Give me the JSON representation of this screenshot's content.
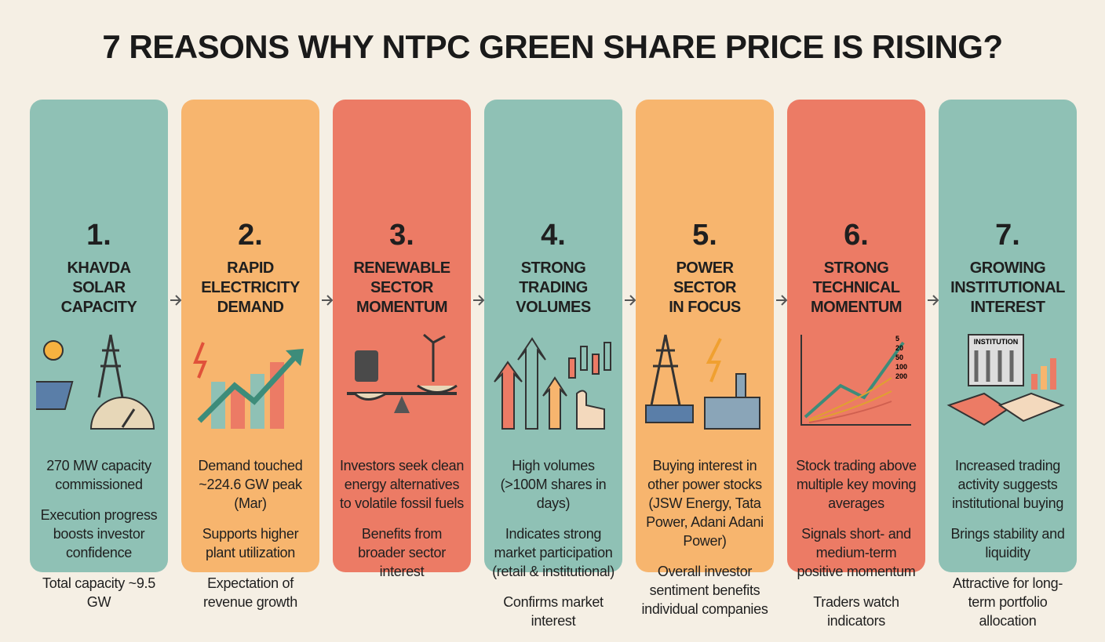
{
  "title": "7 REASONS WHY NTPC GREEN SHARE PRICE IS RISING?",
  "cards": [
    {
      "number": "1.",
      "heading": [
        "KHAVDA",
        "SOLAR",
        "CAPACITY"
      ],
      "body": [
        "270 MW capacity commissioned",
        "Execution progress boosts investor confidence",
        "Total capacity ~9.5 GW"
      ]
    },
    {
      "number": "2.",
      "heading": [
        "RAPID",
        "ELECTRICITY",
        "DEMAND"
      ],
      "body": [
        "Demand touched ~224.6 GW peak (Mar)",
        "Supports higher plant utilization",
        "Expectation of revenue growth"
      ]
    },
    {
      "number": "3.",
      "heading": [
        "RENEWABLE",
        "SECTOR",
        "MOMENTUM"
      ],
      "body": [
        "Investors seek clean energy alternatives to volatile fossil fuels",
        "Benefits from broader sector interest"
      ]
    },
    {
      "number": "4.",
      "heading": [
        "STRONG",
        "TRADING",
        "VOLUMES"
      ],
      "body": [
        "High volumes (>100M shares in days)",
        "Indicates strong market participation (retail & institutional)",
        "Confirms market interest"
      ]
    },
    {
      "number": "5.",
      "heading": [
        "POWER",
        "SECTOR",
        "IN FOCUS"
      ],
      "body": [
        "Buying interest in other power stocks (JSW Energy, Tata Power, Adani Adani Power)",
        "Overall investor sentiment benefits individual companies"
      ]
    },
    {
      "number": "6.",
      "heading": [
        "STRONG",
        "TECHNICAL",
        "MOMENTUM"
      ],
      "icon_labels": [
        "5",
        "20",
        "50",
        "100",
        "200"
      ],
      "body": [
        "Stock trading above multiple key moving averages",
        "Signals short- and medium-term positive momentum",
        "Traders watch indicators"
      ]
    },
    {
      "number": "7.",
      "heading": [
        "GROWING",
        "INSTITUTIONAL",
        "INTEREST"
      ],
      "icon_labels": [
        "INSTITUTION"
      ],
      "body": [
        "Increased trading activity suggests institutional buying",
        "Brings stability and liquidity",
        "Attractive for long-term portfolio allocation"
      ]
    }
  ]
}
